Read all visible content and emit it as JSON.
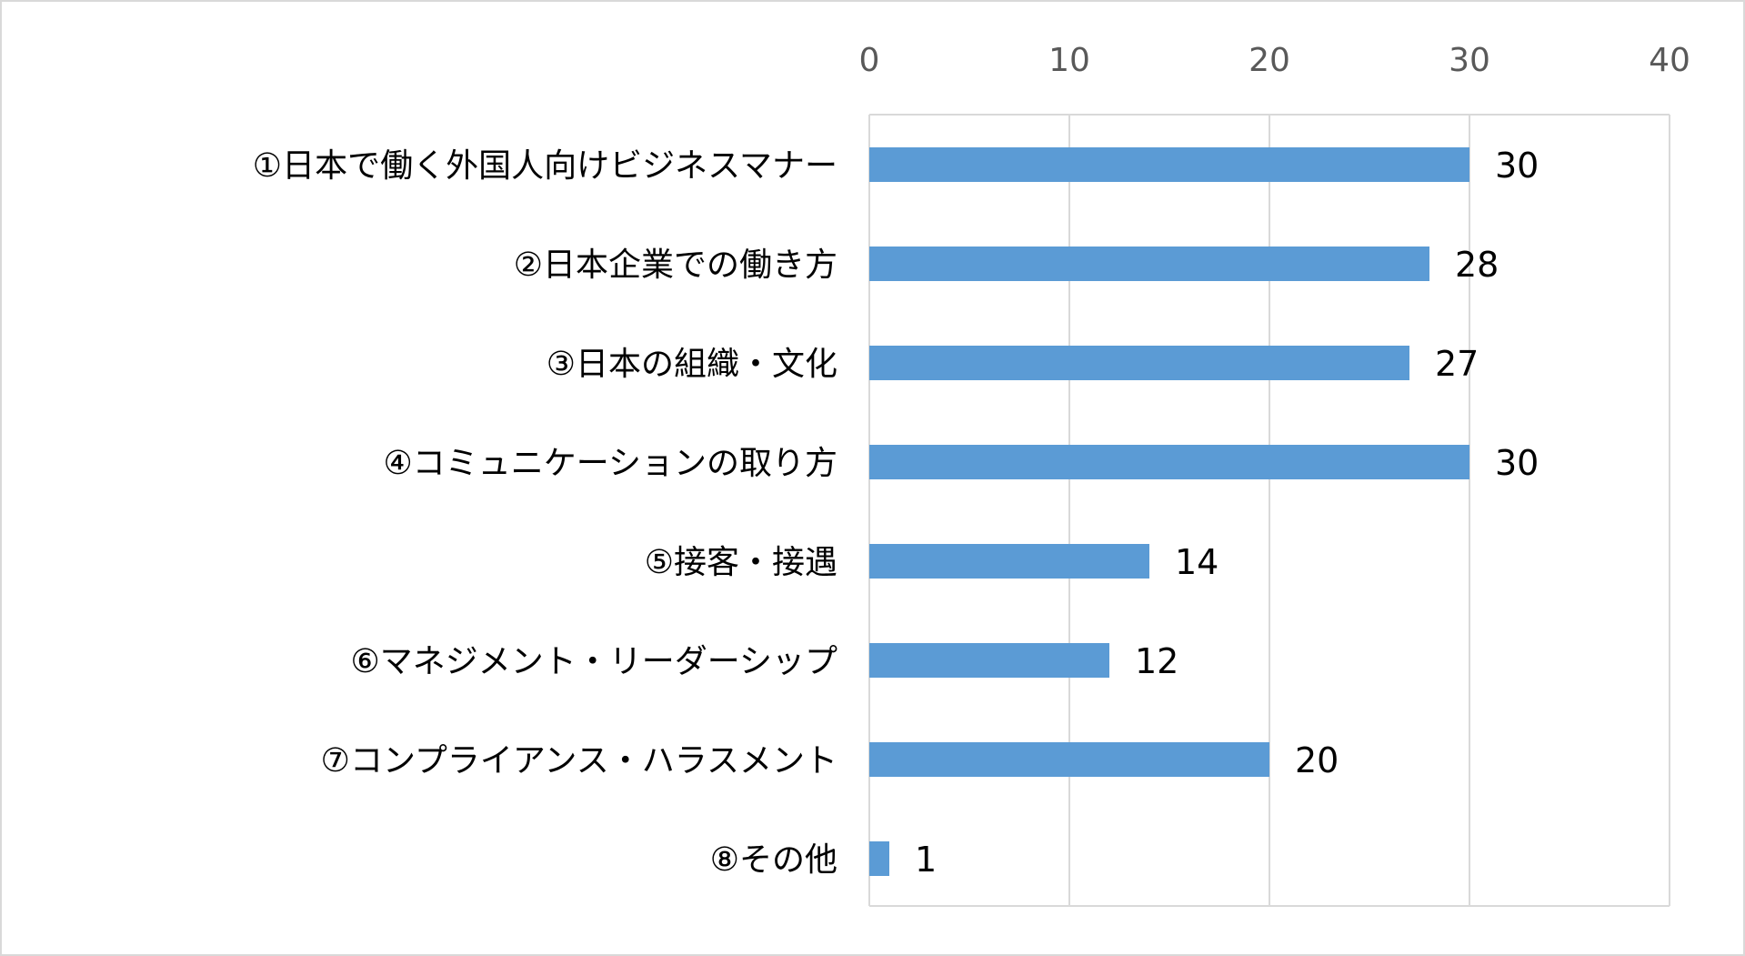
{
  "chart_data": {
    "type": "bar",
    "orientation": "horizontal",
    "categories": [
      "①日本で働く外国人向けビジネスマナー",
      "②日本企業での働き方",
      "③日本の組織・文化",
      "④コミュニケーションの取り方",
      "⑤接客・接遇",
      "⑥マネジメント・リーダーシップ",
      "⑦コンプライアンス・ハラスメント",
      "⑧その他"
    ],
    "values": [
      30,
      28,
      27,
      30,
      14,
      12,
      20,
      1
    ],
    "value_labels": [
      "30",
      "28",
      "27",
      "30",
      "14",
      "12",
      "20",
      "1"
    ],
    "xlim": [
      0,
      40
    ],
    "x_ticks": [
      0,
      10,
      20,
      30,
      40
    ],
    "x_tick_labels": [
      "0",
      "10",
      "20",
      "30",
      "40"
    ],
    "x_axis_position": "top",
    "grid": true,
    "legend": "none",
    "colors": {
      "bar": "#5b9bd5",
      "grid": "#d9d9d9",
      "tick_text": "#595959",
      "label_text": "#000000"
    }
  }
}
